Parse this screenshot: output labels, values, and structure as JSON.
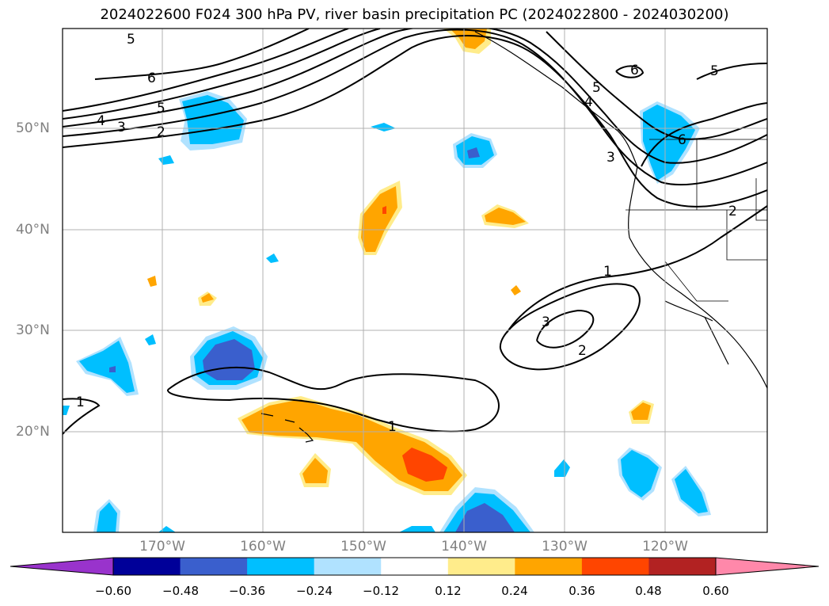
{
  "title": "2024022600 F024 300 hPa PV, river basin precipitation PC (2024022800 - 2024030200)",
  "map": {
    "lat_labels": [
      "50°N",
      "40°N",
      "30°N",
      "20°N"
    ],
    "lon_labels": [
      "170°W",
      "160°W",
      "150°W",
      "140°W",
      "130°W",
      "120°W"
    ],
    "contour_labels": [
      "5",
      "6",
      "5",
      "4",
      "3",
      "2",
      "5",
      "4",
      "3",
      "6",
      "6",
      "5",
      "2",
      "1",
      "3",
      "2",
      "1",
      "1"
    ]
  },
  "colorbar": {
    "colors": [
      "#9933cc",
      "#000099",
      "#3a5fcd",
      "#00bfff",
      "#b0e2ff",
      "#ffffff",
      "#ffec8b",
      "#ffa500",
      "#ff4500",
      "#b22222",
      "#ff88aa"
    ],
    "tick_labels": [
      "−0.60",
      "−0.48",
      "−0.36",
      "−0.24",
      "−0.12",
      "0.12",
      "0.24",
      "0.36",
      "0.48",
      "0.60"
    ]
  }
}
